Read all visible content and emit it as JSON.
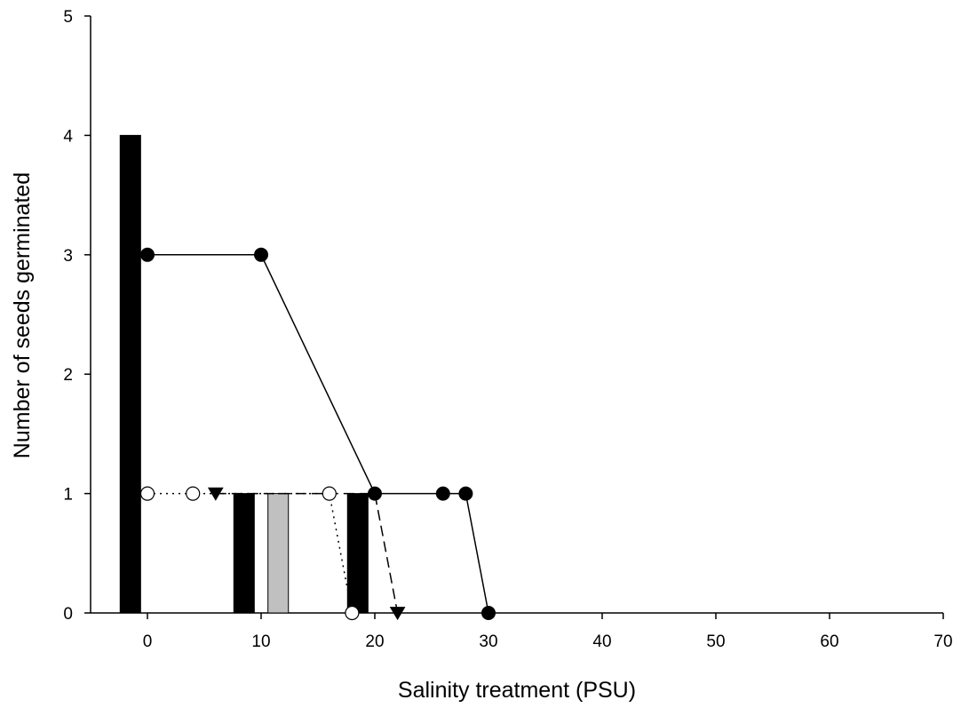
{
  "chart_data": {
    "type": "bar",
    "title": "",
    "xlabel": "Salinity treatment (PSU)",
    "ylabel": "Number of seeds germinated",
    "xlim": [
      -5,
      70
    ],
    "ylim": [
      0,
      5
    ],
    "xticks": [
      0,
      10,
      20,
      30,
      40,
      50,
      60,
      70
    ],
    "yticks": [
      0,
      1,
      2,
      3,
      4,
      5
    ],
    "grid": false,
    "legend": "none",
    "bars": [
      {
        "center": -1.5,
        "width": 1.8,
        "value": 4,
        "color": "#000000"
      },
      {
        "center": 8.5,
        "width": 1.8,
        "value": 1,
        "color": "#000000"
      },
      {
        "center": 11.5,
        "width": 1.8,
        "value": 1,
        "color": "#c0c0c0"
      },
      {
        "center": 18.5,
        "width": 1.8,
        "value": 1,
        "color": "#000000"
      }
    ],
    "series": [
      {
        "marker": "filled-circle",
        "line": "solid",
        "x": [
          0,
          10,
          20,
          26,
          28,
          30
        ],
        "y": [
          3,
          3,
          1,
          1,
          1,
          0
        ]
      },
      {
        "marker": "open-circle",
        "line": "dotted",
        "x": [
          0,
          4,
          16,
          18
        ],
        "y": [
          1,
          1,
          1,
          0
        ]
      },
      {
        "marker": "filled-triangle-down",
        "line": "dashed",
        "x": [
          6,
          20,
          22
        ],
        "y": [
          1,
          1,
          0
        ],
        "markers_at": [
          0,
          2
        ]
      }
    ]
  }
}
